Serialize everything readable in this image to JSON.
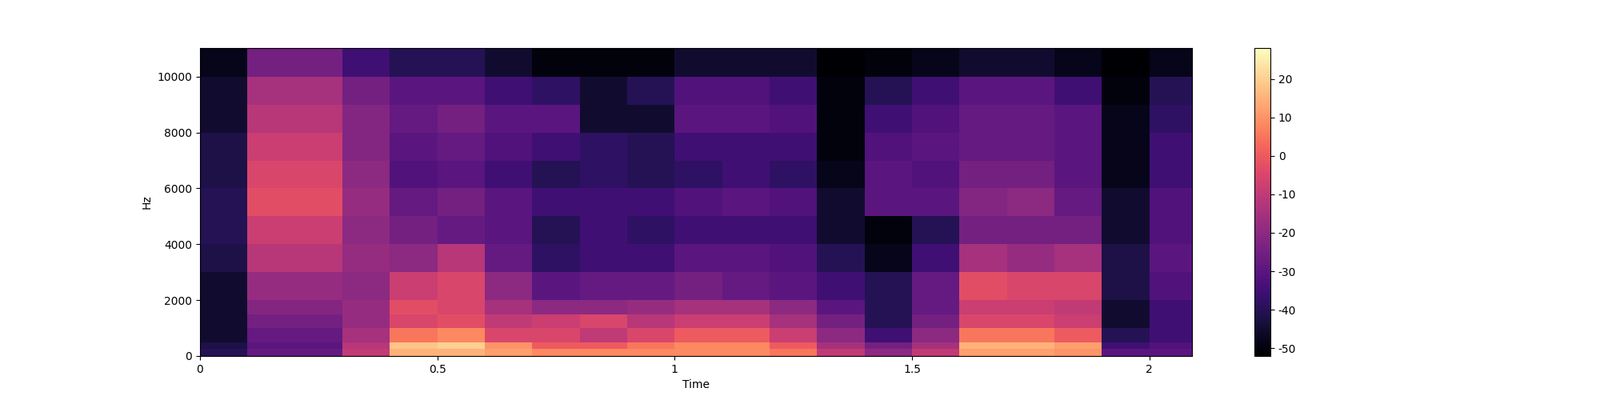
{
  "chart_data": {
    "type": "heatmap",
    "x_label": "Time",
    "y_label": "Hz",
    "time_edges": [
      0,
      0.1,
      0.2,
      0.3,
      0.4,
      0.5,
      0.6,
      0.7,
      0.8,
      0.9,
      1.0,
      1.1,
      1.2,
      1.3,
      1.4,
      1.5,
      1.6,
      1.7,
      1.8,
      1.9,
      2.0,
      2.09
    ],
    "freq_edges": [
      0,
      250,
      500,
      1000,
      1500,
      2000,
      3000,
      4000,
      5000,
      6000,
      7000,
      8000,
      9000,
      10000,
      11025
    ],
    "cells": [
      [
        -40,
        -28,
        -28,
        -10,
        15,
        15,
        12,
        8,
        8,
        8,
        8,
        8,
        5,
        -10,
        -20,
        -10,
        12,
        12,
        10,
        -30,
        -30
      ],
      [
        -42,
        -30,
        -30,
        -12,
        18,
        20,
        10,
        0,
        0,
        5,
        8,
        8,
        0,
        -15,
        -25,
        -15,
        15,
        15,
        12,
        -35,
        -32
      ],
      [
        -45,
        -28,
        -28,
        -15,
        5,
        8,
        -5,
        -5,
        -10,
        -5,
        0,
        0,
        -8,
        -20,
        -35,
        -20,
        5,
        5,
        0,
        -40,
        -35
      ],
      [
        -45,
        -25,
        -25,
        -18,
        -5,
        -3,
        -10,
        -8,
        -5,
        -12,
        -8,
        -8,
        -15,
        -25,
        -40,
        -25,
        -5,
        -5,
        -8,
        -45,
        -35
      ],
      [
        -45,
        -22,
        -22,
        -18,
        -3,
        -5,
        -15,
        -20,
        -20,
        -18,
        -15,
        -15,
        -20,
        -30,
        -40,
        -28,
        -8,
        -8,
        -10,
        -45,
        -35
      ],
      [
        -45,
        -18,
        -18,
        -20,
        -8,
        -5,
        -20,
        -30,
        -28,
        -28,
        -25,
        -28,
        -30,
        -35,
        -40,
        -28,
        -3,
        -5,
        -5,
        -42,
        -32
      ],
      [
        -42,
        -12,
        -12,
        -18,
        -20,
        -12,
        -28,
        -38,
        -35,
        -35,
        -30,
        -30,
        -32,
        -40,
        -48,
        -35,
        -15,
        -18,
        -15,
        -42,
        -30
      ],
      [
        -40,
        -8,
        -8,
        -20,
        -25,
        -28,
        -30,
        -40,
        -35,
        -38,
        -35,
        -35,
        -35,
        -45,
        -50,
        -40,
        -25,
        -25,
        -25,
        -45,
        -32
      ],
      [
        -40,
        -3,
        -3,
        -18,
        -28,
        -25,
        -30,
        -35,
        -35,
        -35,
        -32,
        -30,
        -32,
        -45,
        -30,
        -30,
        -22,
        -20,
        -28,
        -45,
        -32
      ],
      [
        -42,
        -5,
        -5,
        -20,
        -32,
        -30,
        -35,
        -40,
        -38,
        -40,
        -38,
        -35,
        -38,
        -48,
        -30,
        -32,
        -25,
        -25,
        -30,
        -48,
        -35
      ],
      [
        -42,
        -8,
        -8,
        -22,
        -30,
        -28,
        -32,
        -35,
        -38,
        -40,
        -35,
        -35,
        -35,
        -50,
        -32,
        -30,
        -28,
        -28,
        -30,
        -48,
        -35
      ],
      [
        -45,
        -12,
        -12,
        -22,
        -28,
        -25,
        -30,
        -30,
        -45,
        -45,
        -30,
        -30,
        -32,
        -50,
        -35,
        -32,
        -28,
        -28,
        -30,
        -48,
        -38
      ],
      [
        -45,
        -15,
        -15,
        -25,
        -30,
        -30,
        -35,
        -38,
        -45,
        -40,
        -32,
        -32,
        -35,
        -50,
        -40,
        -35,
        -30,
        -30,
        -35,
        -50,
        -40
      ],
      [
        -48,
        -25,
        -25,
        -35,
        -40,
        -40,
        -45,
        -50,
        -50,
        -50,
        -45,
        -45,
        -45,
        -52,
        -50,
        -48,
        -45,
        -45,
        -48,
        -52,
        -48
      ]
    ],
    "xlim": [
      0,
      2.09
    ],
    "xticks": [
      0,
      0.5,
      1,
      1.5,
      2
    ],
    "ylim": [
      0,
      11025
    ],
    "yticks": [
      0,
      2000,
      4000,
      6000,
      8000,
      10000
    ],
    "color_range": [
      -52,
      28
    ],
    "color_ticks": [
      -50,
      -40,
      -30,
      -20,
      -10,
      0,
      10,
      20
    ]
  }
}
